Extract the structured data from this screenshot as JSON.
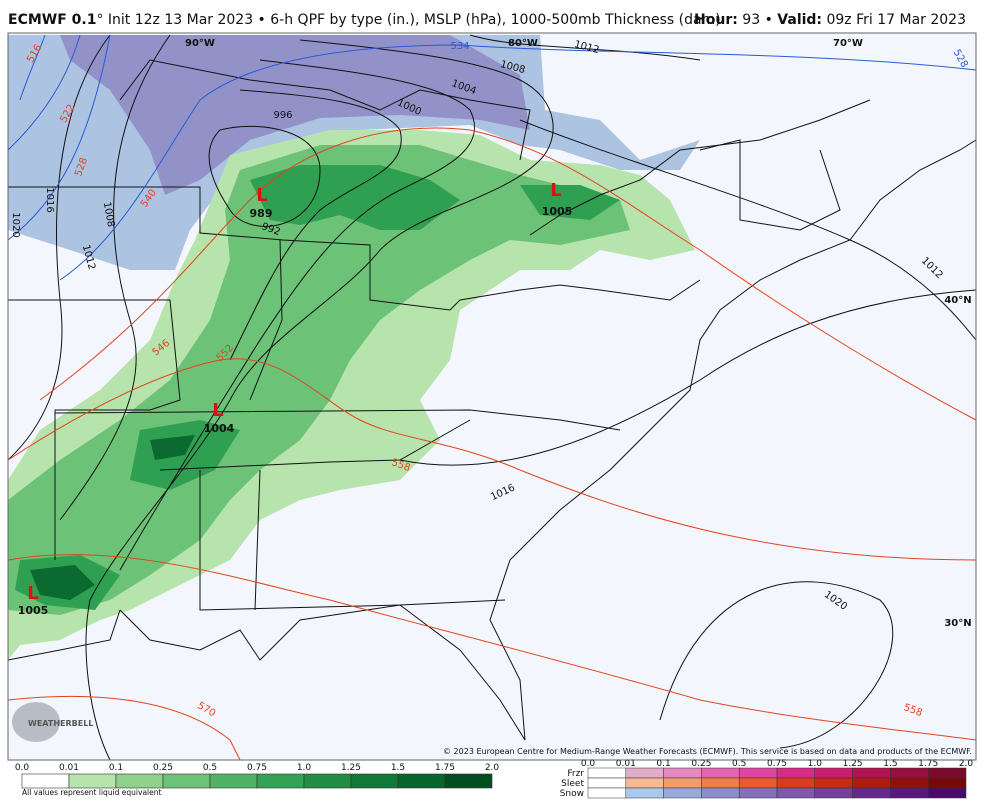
{
  "header": {
    "model": "ECMWF 0.1",
    "description": "° Init 12z 13 Mar 2023 • 6-h QPF by type (in.), MSLP (hPa), 1000-500mb Thickness (dam)",
    "hour_label": "Hour:",
    "hour": "93",
    "separator": "•",
    "valid_label": "Valid:",
    "valid": "09z Fri 17 Mar 2023"
  },
  "map": {
    "lows": [
      {
        "letter": "L",
        "pressure": "989"
      },
      {
        "letter": "L",
        "pressure": "1005"
      },
      {
        "letter": "L",
        "pressure": "1004"
      },
      {
        "letter": "L",
        "pressure": "1005"
      }
    ],
    "isobar_labels": [
      "1012",
      "1008",
      "1004",
      "1000",
      "996",
      "992",
      "1016",
      "1008",
      "1012",
      "1020",
      "1016",
      "1012",
      "1020"
    ],
    "thickness_labels": [
      "516",
      "522",
      "528",
      "540",
      "546",
      "552",
      "558",
      "570",
      "558"
    ],
    "blue_thickness_labels": [
      "534",
      "528"
    ],
    "grid_labels": [
      "90°W",
      "80°W",
      "70°W",
      "40°N",
      "30°N"
    ],
    "logo": "WEATHERBELL",
    "copyright": "© 2023 European Centre for Medium-Range Weather Forecasts (ECMWF). This service is based on data and products of the ECMWF."
  },
  "legend": {
    "qpf_ticks": [
      "0.0",
      "0.01",
      "0.1",
      "0.25",
      "0.5",
      "0.75",
      "1.0",
      "1.25",
      "1.5",
      "1.75",
      "2.0"
    ],
    "qpf_colors": [
      "#ffffff",
      "#b7e3ad",
      "#8fd18b",
      "#6cc277",
      "#4fb266",
      "#33a255",
      "#218d45",
      "#127a38",
      "#06662c",
      "#024e20"
    ],
    "note": "All values represent liquid equivalent",
    "type_ticks": [
      "0.0",
      "0.01",
      "0.1",
      "0.25",
      "0.5",
      "0.75",
      "1.0",
      "1.25",
      "1.5",
      "1.75",
      "2.0"
    ],
    "types": [
      {
        "name": "Frzr",
        "colors": [
          "#ffffff",
          "#e2acc9",
          "#e58ac1",
          "#e266b1",
          "#de46a1",
          "#d52c87",
          "#c71e6d",
          "#b01551",
          "#95103d",
          "#7a0a2c"
        ]
      },
      {
        "name": "Sleet",
        "colors": [
          "#ffffff",
          "#f5ba92",
          "#f39c6b",
          "#f07e48",
          "#ea5b2e",
          "#dc3c1e",
          "#c82b14",
          "#b21c10",
          "#93100c",
          "#780808"
        ]
      },
      {
        "name": "Snow",
        "colors": [
          "#ffffff",
          "#aac9ec",
          "#99a9dc",
          "#8d8dcc",
          "#8471bc",
          "#7c59ac",
          "#70419c",
          "#64298c",
          "#58197c",
          "#4a0a6c"
        ]
      }
    ]
  }
}
